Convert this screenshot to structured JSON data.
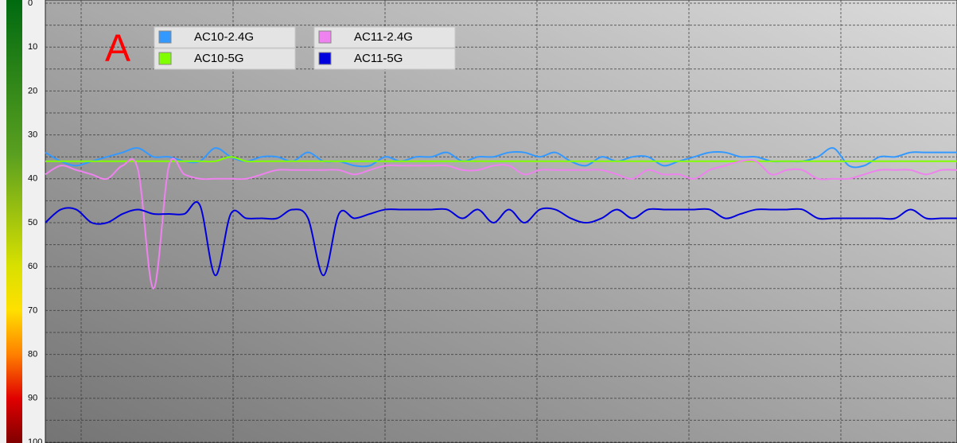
{
  "chart_data": {
    "type": "line",
    "annotation": "A",
    "ylim": [
      100,
      0
    ],
    "yticks": [
      0,
      10,
      20,
      30,
      40,
      50,
      60,
      70,
      80,
      90,
      100
    ],
    "y_minor_ticks": [
      5,
      15,
      25,
      35,
      45,
      55,
      65,
      75,
      85,
      95
    ],
    "grid": true,
    "series": [
      {
        "name": "AC10-2.4G",
        "color": "#3399ff",
        "values": [
          34,
          36,
          37,
          36,
          35,
          34,
          33,
          35,
          35,
          36,
          36,
          33,
          35,
          36,
          35,
          35,
          36,
          34,
          36,
          36,
          37,
          37,
          35,
          36,
          35,
          35,
          34,
          36,
          35,
          35,
          34,
          34,
          35,
          34,
          36,
          37,
          35,
          36,
          35,
          35,
          37,
          36,
          35,
          34,
          34,
          35,
          35,
          36,
          36,
          36,
          35,
          33,
          37,
          37,
          35,
          35,
          34,
          34,
          34,
          34
        ]
      },
      {
        "name": "AC10-5G",
        "color": "#80ff00",
        "values": [
          36,
          36,
          36,
          36,
          36,
          36,
          36,
          36,
          36,
          36,
          36,
          36,
          35,
          36,
          36,
          36,
          36,
          36,
          36,
          36,
          36,
          36,
          36,
          36,
          36,
          36,
          36,
          36,
          36,
          36,
          36,
          36,
          36,
          36,
          36,
          36,
          36,
          36,
          36,
          36,
          36,
          36,
          36,
          36,
          36,
          36,
          36,
          36,
          36,
          36,
          36,
          36,
          36,
          36,
          36,
          36,
          36,
          36,
          36,
          36
        ]
      },
      {
        "name": "AC11-2.4G",
        "color": "#ee82ee",
        "values": [
          39,
          37,
          38,
          39,
          40,
          37,
          38,
          65,
          37,
          39,
          40,
          40,
          40,
          40,
          39,
          38,
          38,
          38,
          38,
          38,
          39,
          38,
          37,
          37,
          37,
          37,
          37,
          38,
          38,
          37,
          37,
          39,
          38,
          38,
          38,
          38,
          38,
          39,
          40,
          38,
          39,
          39,
          40,
          38,
          37,
          36,
          36,
          39,
          38,
          38,
          40,
          40,
          40,
          39,
          38,
          38,
          38,
          39,
          38,
          38
        ]
      },
      {
        "name": "AC11-5G",
        "color": "#0000dd",
        "values": [
          50,
          47,
          47,
          50,
          50,
          48,
          47,
          48,
          48,
          48,
          46,
          62,
          48,
          49,
          49,
          49,
          47,
          49,
          62,
          48,
          49,
          48,
          47,
          47,
          47,
          47,
          47,
          49,
          47,
          50,
          47,
          50,
          47,
          47,
          49,
          50,
          49,
          47,
          49,
          47,
          47,
          47,
          47,
          47,
          49,
          48,
          47,
          47,
          47,
          47,
          49,
          49,
          49,
          49,
          49,
          49,
          47,
          49,
          49,
          49
        ]
      }
    ]
  }
}
